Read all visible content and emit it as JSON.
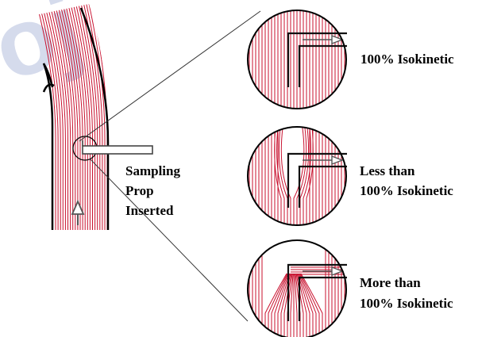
{
  "labels": {
    "probe": [
      "Sampling",
      "Prop",
      "Inserted"
    ],
    "iso_100": [
      "100% Isokinetic"
    ],
    "iso_less": [
      "Less than",
      " 100% Isokinetic"
    ],
    "iso_more": [
      "More than",
      "100% Isokinetic"
    ]
  },
  "colors": {
    "flow_line": "#c8102e",
    "duct_wall": "#000000",
    "probe": "#555555",
    "arrow": "#555555",
    "circle_outline": "#000000",
    "watermark": "#c7cfe6"
  },
  "icons": {
    "flow_direction": "up-arrow-icon",
    "probe_arrow": "right-arrow-icon"
  }
}
